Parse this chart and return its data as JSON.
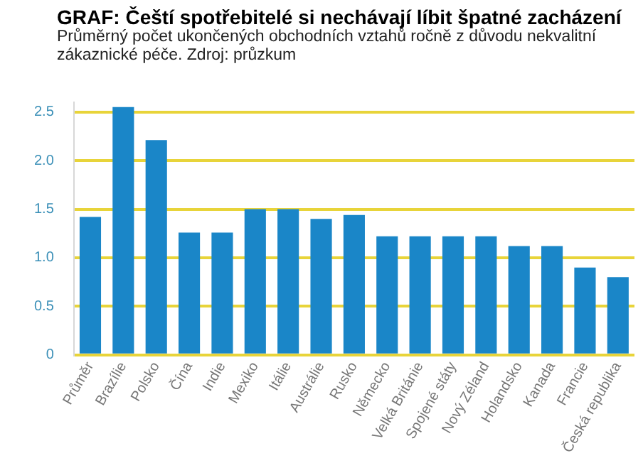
{
  "chart_data": {
    "type": "bar",
    "title": "GRAF: Čeští spotřebitelé si nechávají líbit špatné zacházení",
    "subtitle": "Průměrný počet ukončených obchodních vztahů ročně z důvodu nekvalitní zákaznické péče. Zdroj: průzkum",
    "categories": [
      "Průměr",
      "Brazílie",
      "Polsko",
      "Čína",
      "Indie",
      "Mexiko",
      "Itálie",
      "Austrálie",
      "Rusko",
      "Německo",
      "Velká Británie",
      "Spojené státy",
      "Nový Zéland",
      "Holandsko",
      "Kanada",
      "Francie",
      "Česká republika"
    ],
    "values": [
      1.42,
      2.55,
      2.21,
      1.26,
      1.26,
      1.5,
      1.5,
      1.4,
      1.44,
      1.22,
      1.22,
      1.22,
      1.22,
      1.12,
      1.12,
      0.9,
      0.8
    ],
    "color": "#1a86c8",
    "ylim": [
      0,
      2.6
    ],
    "yticks": [
      0,
      {
        "value": 0.5,
        "label": "0.5"
      },
      {
        "value": 1,
        "label": "1.0"
      },
      {
        "value": 1.5,
        "label": "1.5"
      },
      {
        "value": 2,
        "label": "2.0"
      },
      {
        "value": 2.5,
        "label": "2.5"
      }
    ],
    "grid": "y"
  }
}
